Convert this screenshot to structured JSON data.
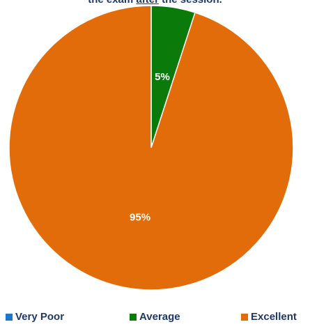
{
  "chart_data": {
    "type": "pie",
    "title_parts": {
      "before": "the exam ",
      "underlined": "after",
      "after": " the session."
    },
    "slices": [
      {
        "label": "Very Poor",
        "value": 0,
        "data_label": "",
        "color": "#1f77c8"
      },
      {
        "label": "Average",
        "value": 5,
        "data_label": "5%",
        "color": "#0a7a0a"
      },
      {
        "label": "Excellent",
        "value": 95,
        "data_label": "95%",
        "color": "#e36c0a"
      }
    ],
    "start_angle_deg": 0,
    "direction": "clockwise",
    "legend_position": "bottom",
    "label_color": "#ffffff"
  }
}
